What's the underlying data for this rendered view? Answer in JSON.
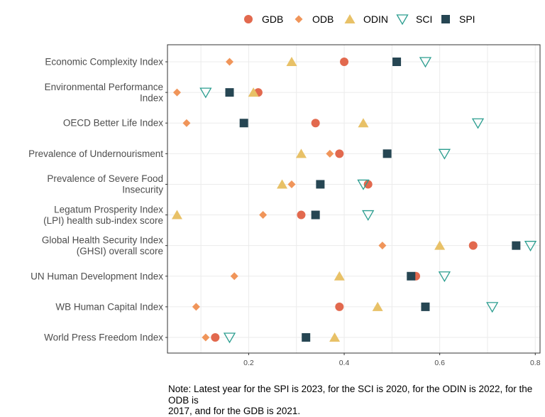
{
  "chart_data": {
    "type": "scatter",
    "title": "",
    "xlabel": "",
    "ylabel": "",
    "xlim": [
      0.03,
      0.81
    ],
    "x_ticks": [
      "0.2",
      "0.4",
      "0.6",
      "0.8"
    ],
    "grid": true,
    "legend_position": "top",
    "categories": [
      [
        "Economic Complexity Index"
      ],
      [
        "Environmental Performance",
        "Index"
      ],
      [
        "OECD Better Life Index"
      ],
      [
        "Prevalence of Undernourisment"
      ],
      [
        "Prevalence of Severe Food",
        "Insecurity"
      ],
      [
        "Legatum Prosperity Index",
        "(LPI) health sub-index score"
      ],
      [
        "Global Health Security Index",
        "(GHSI) overall score"
      ],
      [
        "UN Human Development Index"
      ],
      [
        "WB Human Capital Index"
      ],
      [
        "World Press Freedom Index"
      ]
    ],
    "series": [
      {
        "name": "GDB",
        "marker": "circle",
        "color": "#e2694e",
        "values": [
          0.4,
          0.22,
          0.34,
          0.39,
          0.45,
          0.31,
          0.67,
          0.55,
          0.39,
          0.13
        ]
      },
      {
        "name": "ODB",
        "marker": "diamond",
        "color": "#f0955a",
        "values": [
          0.16,
          0.05,
          0.07,
          0.37,
          0.29,
          0.23,
          0.48,
          0.17,
          0.09,
          0.11
        ]
      },
      {
        "name": "ODIN",
        "marker": "triangle-up",
        "color": "#e8c167",
        "values": [
          0.29,
          0.21,
          0.44,
          0.31,
          0.27,
          0.05,
          0.6,
          0.39,
          0.47,
          0.38
        ]
      },
      {
        "name": "SCI",
        "marker": "triangle-down-open",
        "color": "#2a9d8f",
        "values": [
          0.57,
          0.11,
          0.68,
          0.61,
          0.44,
          0.45,
          0.79,
          0.61,
          0.71,
          0.16
        ]
      },
      {
        "name": "SPI",
        "marker": "square",
        "color": "#264653",
        "values": [
          0.51,
          0.16,
          0.19,
          0.49,
          0.35,
          0.34,
          0.76,
          0.54,
          0.57,
          0.32
        ]
      }
    ]
  },
  "note": "Note: Latest year for the SPI is 2023, for the SCI is 2020, for the ODIN is 2022, for the ODB is\n2017, and for the GDB is 2021."
}
